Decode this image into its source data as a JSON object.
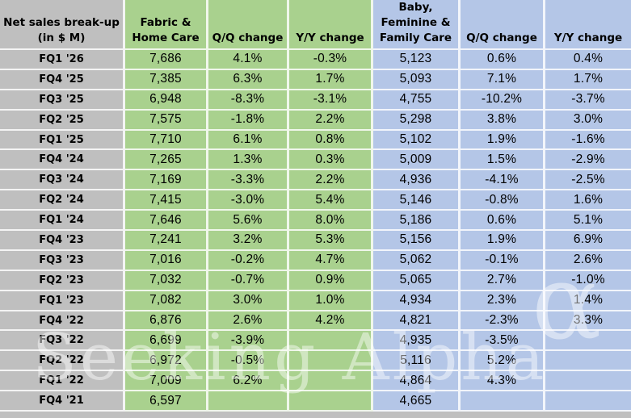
{
  "header": {
    "label": "Net sales break-up\n(in $ M)",
    "fabric_name": "Fabric &\nHome Care",
    "fabric_qq": "Q/Q change",
    "fabric_yy": "Y/Y change",
    "baby_name": "Baby,\nFeminine &\nFamily Care",
    "baby_qq": "Q/Q change",
    "baby_yy": "Y/Y change"
  },
  "watermark": {
    "text": "Seeking Alpha",
    "symbol": "α"
  },
  "colors": {
    "label_bg": "#BFBFBF",
    "fabric_bg": "#A9D18E",
    "baby_bg": "#B4C6E7",
    "text": "#000000"
  },
  "chart_data": {
    "type": "table",
    "title": "Net sales break-up (in $ M)",
    "columns": [
      "Quarter",
      "Fabric & Home Care net sales ($M)",
      "Fabric & Home Care Q/Q change",
      "Fabric & Home Care Y/Y change",
      "Baby, Feminine & Family Care net sales ($M)",
      "Baby, Feminine & Family Care Q/Q change",
      "Baby, Feminine & Family Care Y/Y change"
    ],
    "rows": [
      [
        "FQ1 '26",
        "7,686",
        "4.1%",
        "-0.3%",
        "5,123",
        "0.6%",
        "0.4%"
      ],
      [
        "FQ4 '25",
        "7,385",
        "6.3%",
        "1.7%",
        "5,093",
        "7.1%",
        "1.7%"
      ],
      [
        "FQ3 '25",
        "6,948",
        "-8.3%",
        "-3.1%",
        "4,755",
        "-10.2%",
        "-3.7%"
      ],
      [
        "FQ2 '25",
        "7,575",
        "-1.8%",
        "2.2%",
        "5,298",
        "3.8%",
        "3.0%"
      ],
      [
        "FQ1 '25",
        "7,710",
        "6.1%",
        "0.8%",
        "5,102",
        "1.9%",
        "-1.6%"
      ],
      [
        "FQ4 '24",
        "7,265",
        "1.3%",
        "0.3%",
        "5,009",
        "1.5%",
        "-2.9%"
      ],
      [
        "FQ3 '24",
        "7,169",
        "-3.3%",
        "2.2%",
        "4,936",
        "-4.1%",
        "-2.5%"
      ],
      [
        "FQ2 '24",
        "7,415",
        "-3.0%",
        "5.4%",
        "5,146",
        "-0.8%",
        "1.6%"
      ],
      [
        "FQ1 '24",
        "7,646",
        "5.6%",
        "8.0%",
        "5,186",
        "0.6%",
        "5.1%"
      ],
      [
        "FQ4 '23",
        "7,241",
        "3.2%",
        "5.3%",
        "5,156",
        "1.9%",
        "6.9%"
      ],
      [
        "FQ3 '23",
        "7,016",
        "-0.2%",
        "4.7%",
        "5,062",
        "-0.1%",
        "2.6%"
      ],
      [
        "FQ2 '23",
        "7,032",
        "-0.7%",
        "0.9%",
        "5,065",
        "2.7%",
        "-1.0%"
      ],
      [
        "FQ1 '23",
        "7,082",
        "3.0%",
        "1.0%",
        "4,934",
        "2.3%",
        "1.4%"
      ],
      [
        "FQ4 '22",
        "6,876",
        "2.6%",
        "4.2%",
        "4,821",
        "-2.3%",
        "3.3%"
      ],
      [
        "FQ3 '22",
        "6,699",
        "-3.9%",
        "",
        "4,935",
        "-3.5%",
        ""
      ],
      [
        "FQ2 '22",
        "6,972",
        "-0.5%",
        "",
        "5,116",
        "5.2%",
        ""
      ],
      [
        "FQ1 '22",
        "7,009",
        "6.2%",
        "",
        "4,864",
        "4.3%",
        ""
      ],
      [
        "FQ4 '21",
        "6,597",
        "",
        "",
        "4,665",
        "",
        ""
      ]
    ]
  }
}
